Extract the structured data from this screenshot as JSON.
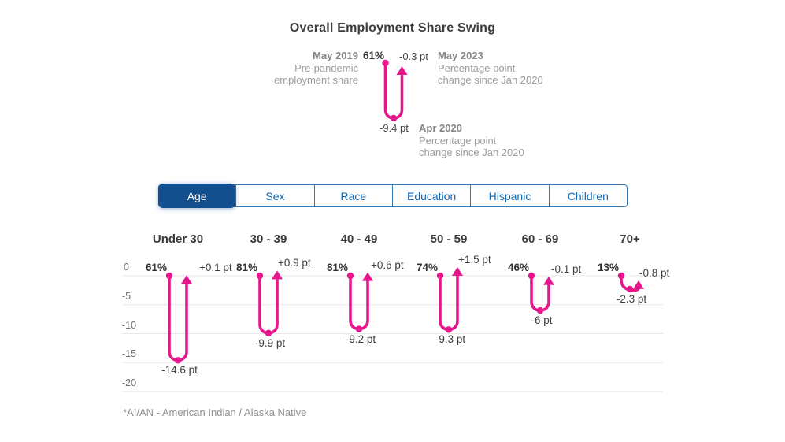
{
  "title": "Overall Employment Share Swing",
  "legend": {
    "start_label": "May 2019",
    "start_desc_line1": "Pre-pandemic",
    "start_desc_line2": "employment share",
    "start_value": "61%",
    "end_value": "-0.3 pt",
    "end_label": "May 2023",
    "end_desc_line1": "Percentage point",
    "end_desc_line2": "change since Jan 2020",
    "min_value": "-9.4 pt",
    "min_label": "Apr 2020",
    "min_desc_line1": "Percentage point",
    "min_desc_line2": "change since Jan 2020"
  },
  "tabs": [
    {
      "label": "Age",
      "selected": true
    },
    {
      "label": "Sex",
      "selected": false
    },
    {
      "label": "Race",
      "selected": false
    },
    {
      "label": "Education",
      "selected": false
    },
    {
      "label": "Hispanic",
      "selected": false
    },
    {
      "label": "Children",
      "selected": false
    }
  ],
  "chart_data": {
    "type": "line",
    "subtype": "u-swing",
    "title": "Overall Employment Share Swing",
    "xlabel": "",
    "ylabel": "Percentage point change since Jan 2020",
    "ylim": [
      -20.5,
      2
    ],
    "grid": true,
    "yticks": [
      "0",
      "-5",
      "-10",
      "-15",
      "-20"
    ],
    "overall": {
      "share_pct": 61,
      "trough_pt": -9.4,
      "end_pt": -0.3,
      "start_date": "May 2019",
      "trough_date": "Apr 2020",
      "end_date": "May 2023"
    },
    "categories": [
      "Under 30",
      "30 - 39",
      "40 - 49",
      "50 - 59",
      "60 - 69",
      "70+"
    ],
    "series": [
      {
        "category": "Under 30",
        "share": "61%",
        "start_pt": 0,
        "trough_pt": -14.6,
        "end_pt": 0.1,
        "trough_label": "-14.6 pt",
        "end_label": "+0.1 pt"
      },
      {
        "category": "30 - 39",
        "share": "81%",
        "start_pt": 0,
        "trough_pt": -9.9,
        "end_pt": 0.9,
        "trough_label": "-9.9 pt",
        "end_label": "+0.9 pt"
      },
      {
        "category": "40 - 49",
        "share": "81%",
        "start_pt": 0,
        "trough_pt": -9.2,
        "end_pt": 0.6,
        "trough_label": "-9.2 pt",
        "end_label": "+0.6 pt"
      },
      {
        "category": "50 - 59",
        "share": "74%",
        "start_pt": 0,
        "trough_pt": -9.3,
        "end_pt": 1.5,
        "trough_label": "-9.3 pt",
        "end_label": "+1.5 pt"
      },
      {
        "category": "60 - 69",
        "share": "46%",
        "start_pt": 0,
        "trough_pt": -6,
        "end_pt": -0.1,
        "trough_label": "-6 pt",
        "end_label": "-0.1 pt"
      },
      {
        "category": "70+",
        "share": "13%",
        "start_pt": 0,
        "trough_pt": -2.3,
        "end_pt": -0.8,
        "trough_label": "-2.3 pt",
        "end_label": "-0.8 pt"
      }
    ]
  },
  "footnote": "*AI/AN - American Indian / Alaska Native",
  "colors": {
    "accent": "#e4188c",
    "tab_selected_bg": "#134e8e",
    "tab_text": "#1268b3",
    "gridline": "#e7e7e7"
  }
}
